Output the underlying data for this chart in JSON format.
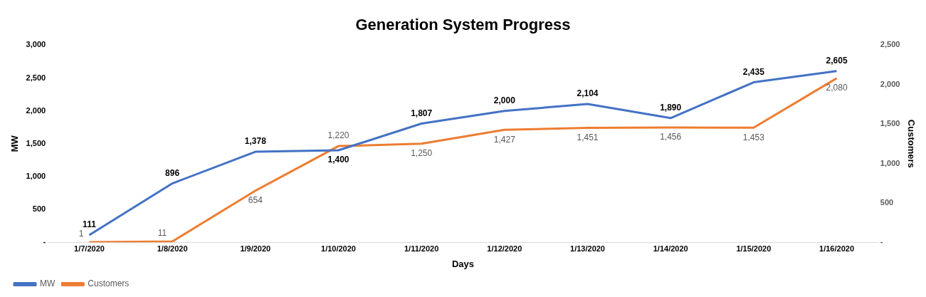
{
  "chart_data": {
    "type": "line",
    "title": "Generation System Progress",
    "xlabel": "Days",
    "ylabel": "MW",
    "y2label": "Customers",
    "categories": [
      "1/7/2020",
      "1/8/2020",
      "1/9/2020",
      "1/10/2020",
      "1/11/2020",
      "1/12/2020",
      "1/13/2020",
      "1/14/2020",
      "1/15/2020",
      "1/16/2020"
    ],
    "series": [
      {
        "name": "MW",
        "color": "#4472c4",
        "values": [
          111,
          896,
          1378,
          1400,
          1807,
          2000,
          2104,
          1890,
          2435,
          2605
        ],
        "value_labels": [
          "111",
          "896",
          "1,378",
          "1,400",
          "1,807",
          "2,000",
          "2,104",
          "1,890",
          "2,435",
          "2,605"
        ]
      },
      {
        "name": "Customers",
        "color": "#ed7d31",
        "axis": "y2",
        "values": [
          1,
          11,
          654,
          1220,
          1250,
          1427,
          1451,
          1456,
          1453,
          2080
        ],
        "value_labels": [
          "1",
          "11",
          "654",
          "1,220",
          "1,250",
          "1,427",
          "1,451",
          "1,456",
          "1,453",
          "2,080"
        ]
      }
    ],
    "ylim": [
      0,
      3000
    ],
    "yticks": [
      {
        "value": 0,
        "label": "-"
      },
      {
        "value": 500,
        "label": "500"
      },
      {
        "value": 1000,
        "label": "1,000"
      },
      {
        "value": 1500,
        "label": "1,500"
      },
      {
        "value": 2000,
        "label": "2,000"
      },
      {
        "value": 2500,
        "label": "2,500"
      },
      {
        "value": 3000,
        "label": "3,000"
      }
    ],
    "y2lim": [
      0,
      2500
    ],
    "y2ticks": [
      {
        "value": 0,
        "label": "-"
      },
      {
        "value": 500,
        "label": "500"
      },
      {
        "value": 1000,
        "label": "1,000"
      },
      {
        "value": 1500,
        "label": "1,500"
      },
      {
        "value": 2000,
        "label": "2,000"
      },
      {
        "value": 2500,
        "label": "2,500"
      }
    ],
    "grid": false,
    "legend": "bottom left",
    "marker": "none",
    "line_style": "solid"
  }
}
